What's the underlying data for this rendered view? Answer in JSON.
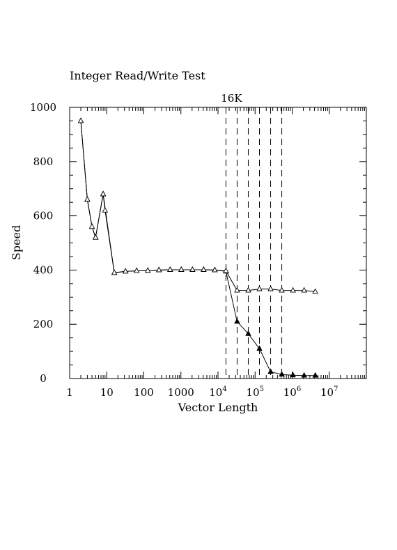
{
  "chart_data": {
    "type": "line",
    "title": "Integer Read/Write Test",
    "xlabel": "Vector Length",
    "ylabel": "Speed",
    "x_scale": "log",
    "xlim": [
      1,
      100000000
    ],
    "ylim": [
      0,
      1000
    ],
    "grid": false,
    "x_tick_labels": [
      {
        "value": 1,
        "base": "1",
        "exp": ""
      },
      {
        "value": 10,
        "base": "10",
        "exp": ""
      },
      {
        "value": 100,
        "base": "100",
        "exp": ""
      },
      {
        "value": 1000,
        "base": "1000",
        "exp": ""
      },
      {
        "value": 10000,
        "base": "10",
        "exp": "4"
      },
      {
        "value": 100000,
        "base": "10",
        "exp": "5"
      },
      {
        "value": 1000000,
        "base": "10",
        "exp": "6"
      },
      {
        "value": 10000000,
        "base": "10",
        "exp": "7"
      }
    ],
    "y_ticks": [
      0,
      200,
      400,
      600,
      800,
      1000
    ],
    "annotation": {
      "text": "16K",
      "x": 16384
    },
    "vlines": [
      16384,
      32768,
      65536,
      131072,
      262144,
      524288
    ],
    "series": [
      {
        "marker": "filled-triangle",
        "x": [
          2,
          3,
          4,
          5,
          8,
          16,
          32,
          64,
          128,
          256,
          512,
          1024,
          2048,
          4096,
          8192,
          16384,
          32768,
          65536,
          131072,
          262144,
          524288,
          1048576,
          2097152,
          4194304
        ],
        "y": [
          950,
          660,
          560,
          520,
          680,
          390,
          395,
          397,
          398,
          400,
          401,
          401,
          401,
          401,
          400,
          395,
          210,
          165,
          110,
          25,
          15,
          12,
          11,
          11
        ]
      },
      {
        "marker": "open-triangle",
        "x": [
          2,
          3,
          4,
          5,
          8,
          9,
          16,
          32,
          64,
          128,
          256,
          512,
          1024,
          2048,
          4096,
          8192,
          16384,
          32768,
          65536,
          131072,
          262144,
          524288,
          1048576,
          2097152,
          4194304
        ],
        "y": [
          950,
          660,
          560,
          520,
          680,
          620,
          390,
          395,
          397,
          398,
          400,
          401,
          401,
          401,
          401,
          400,
          397,
          325,
          325,
          330,
          330,
          325,
          325,
          325,
          320
        ]
      }
    ]
  }
}
